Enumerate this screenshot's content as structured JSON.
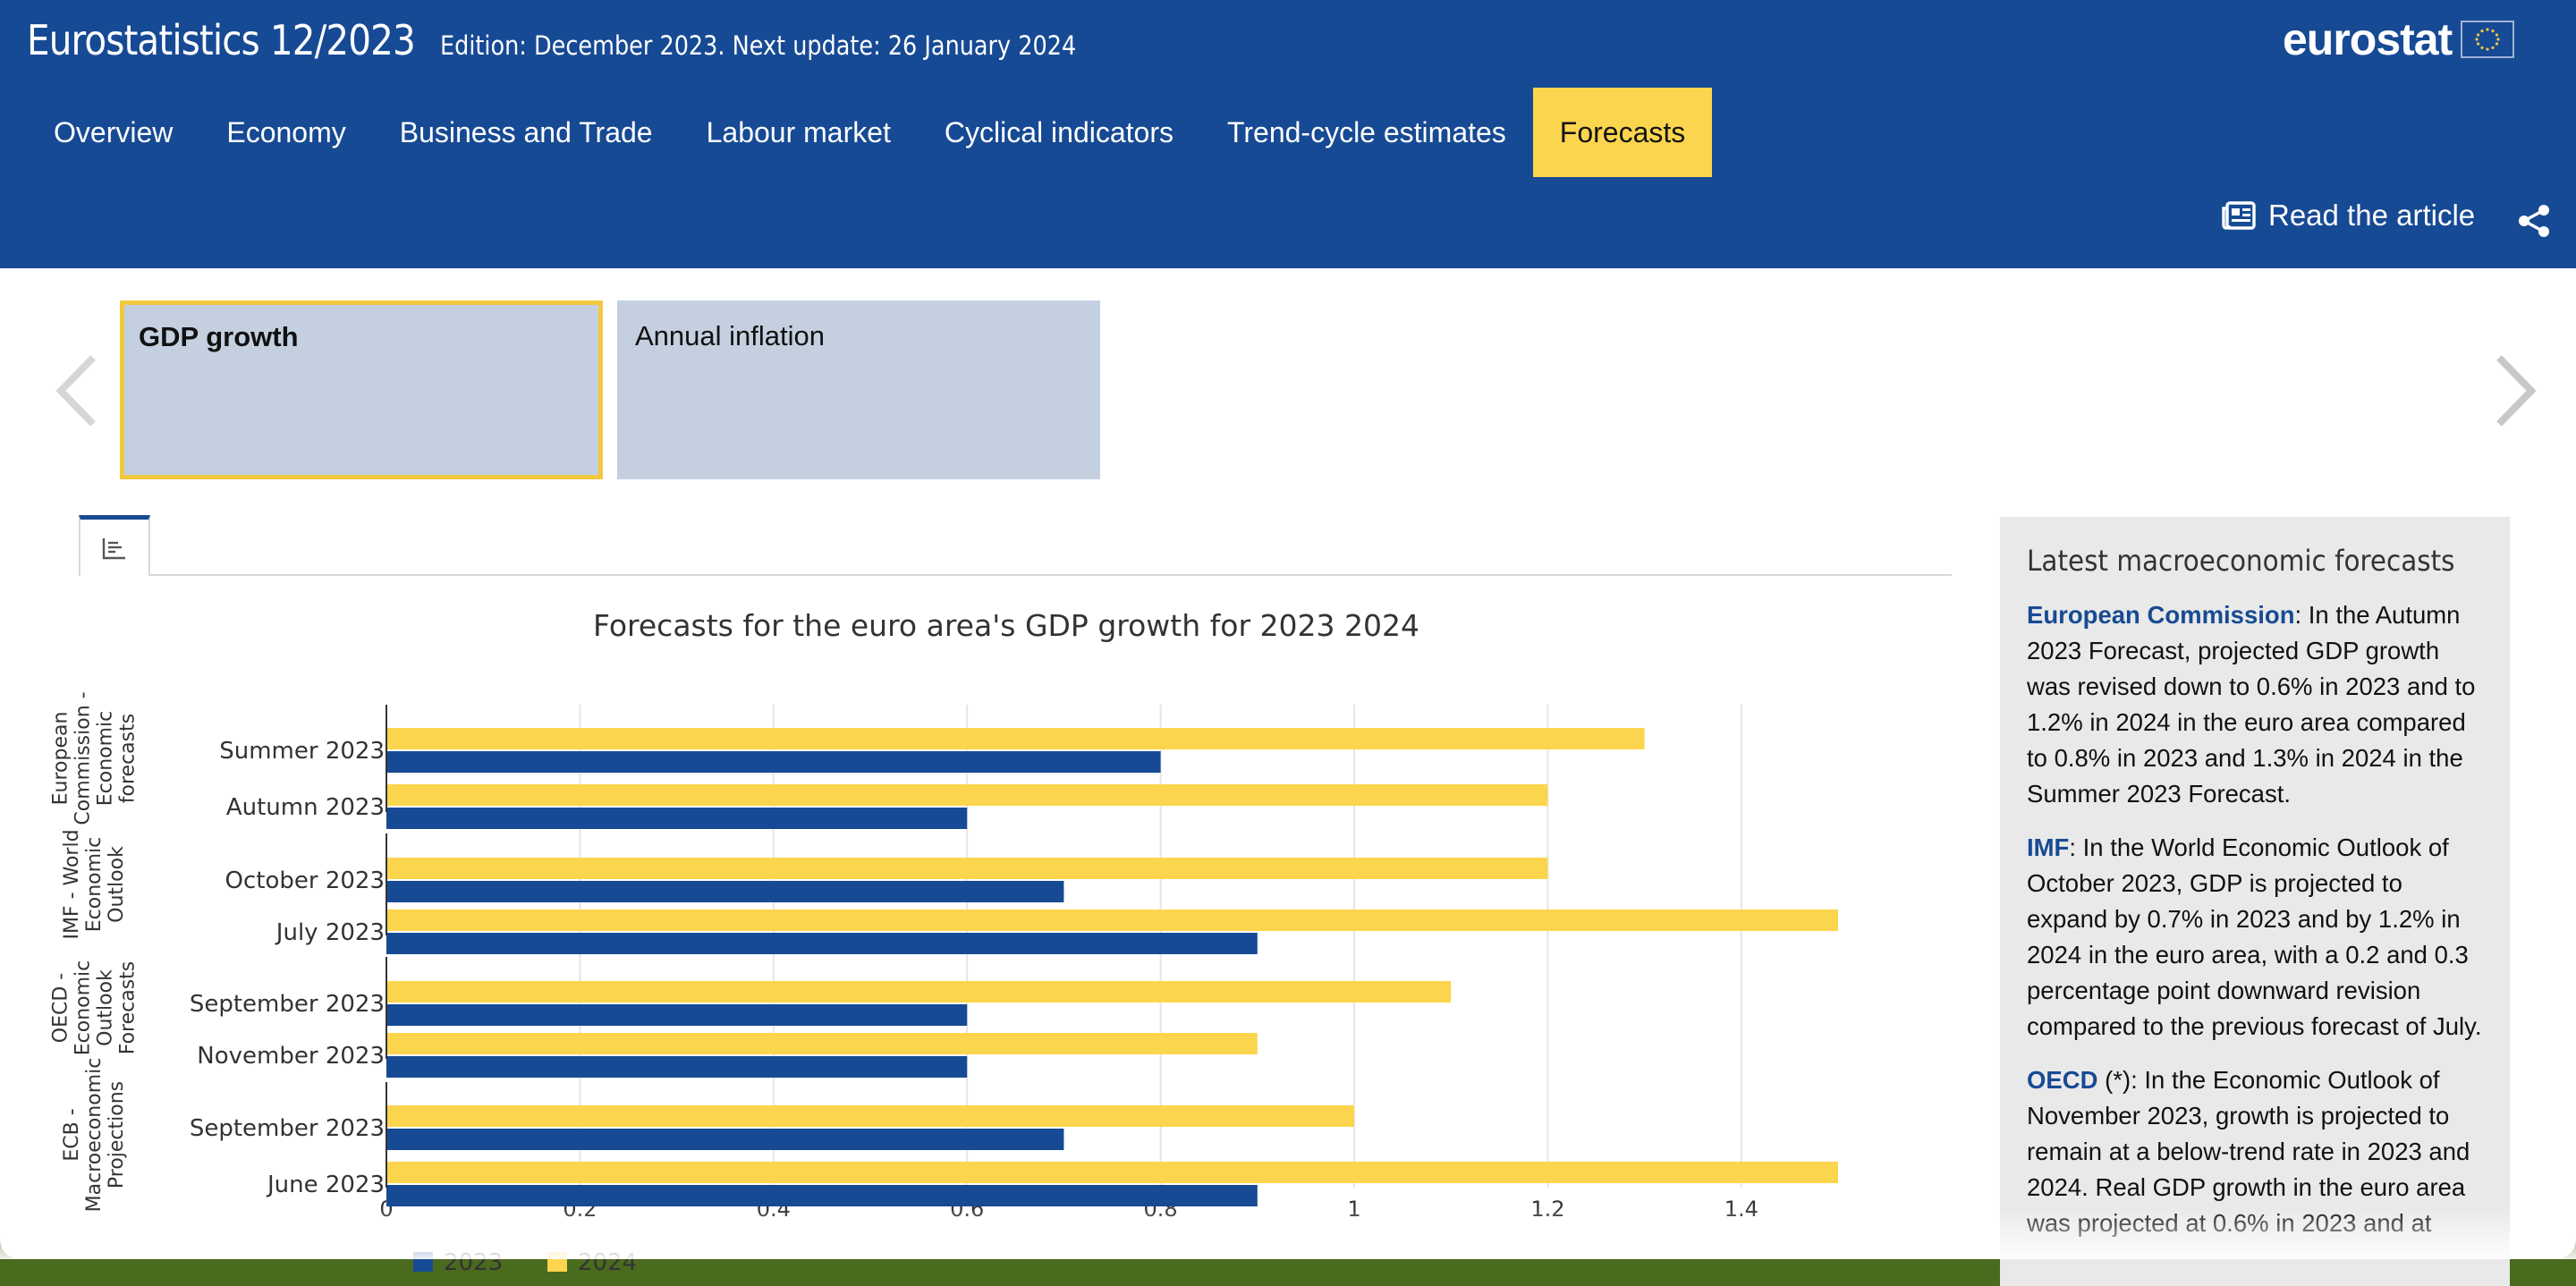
{
  "header": {
    "title": "Eurostatistics 12/2023",
    "edition": "Edition: December 2023. Next update: 26 January 2024",
    "logo_text": "eurostat"
  },
  "nav": {
    "tabs": [
      {
        "label": "Overview"
      },
      {
        "label": "Economy"
      },
      {
        "label": "Business and Trade"
      },
      {
        "label": "Labour market"
      },
      {
        "label": "Cyclical indicators"
      },
      {
        "label": "Trend-cycle estimates"
      },
      {
        "label": "Forecasts",
        "active": true
      }
    ],
    "read_article": "Read the article"
  },
  "carousel": {
    "cards": [
      {
        "label": "GDP growth",
        "selected": true
      },
      {
        "label": "Annual inflation",
        "selected": false
      }
    ]
  },
  "chart_data": {
    "type": "bar",
    "orientation": "horizontal",
    "title": "Forecasts for the euro area's GDP growth for 2023 2024",
    "groups": [
      {
        "label": "European Commission - Economic forecasts",
        "categories": [
          "Summer 2023",
          "Autumn 2023"
        ]
      },
      {
        "label": "IMF - World Economic Outlook",
        "categories": [
          "October 2023",
          "July 2023"
        ]
      },
      {
        "label": "OECD - Economic Outlook Forecasts",
        "categories": [
          "September 2023",
          "November 2023"
        ]
      },
      {
        "label": "ECB - Macroeconomic Projections",
        "categories": [
          "September 2023",
          "June 2023"
        ]
      }
    ],
    "categories": [
      "Summer 2023",
      "Autumn 2023",
      "October 2023",
      "July 2023",
      "September 2023",
      "November 2023",
      "September 2023",
      "June 2023"
    ],
    "series": [
      {
        "name": "2024",
        "color": "#fbd54d",
        "values": [
          1.3,
          1.2,
          1.2,
          1.5,
          1.1,
          0.9,
          1.0,
          1.5
        ]
      },
      {
        "name": "2023",
        "color": "#174a94",
        "values": [
          0.8,
          0.6,
          0.7,
          0.9,
          0.6,
          0.6,
          0.7,
          0.9
        ]
      }
    ],
    "xticks": [
      "0",
      "0.2",
      "0.4",
      "0.6",
      "0.8",
      "1",
      "1.2",
      "1.4"
    ],
    "xlim": [
      0,
      1.55
    ],
    "grid": true,
    "legend_position": "bottom-left"
  },
  "side_panel": {
    "title": "Latest macroeconomic forecasts",
    "items": [
      {
        "source": "European Commission",
        "text": ": In the Autumn 2023 Forecast, projected GDP growth was revised down to 0.6% in 2023 and to 1.2% in 2024 in the euro area compared to 0.8% in 2023 and 1.3% in 2024 in the Summer 2023 Forecast."
      },
      {
        "source": "IMF",
        "text": ": In the World Economic Outlook of October 2023, GDP is projected to expand by 0.7% in 2023 and by 1.2% in 2024 in the euro area, with a 0.2 and 0.3 percentage point downward revision compared to the previous forecast of July."
      },
      {
        "source": "OECD",
        "text": " (*): In the Economic Outlook of November 2023, growth is projected to remain at a below-trend rate in 2023 and 2024. Real GDP growth in the euro area was projected at 0.6% in 2023 and at"
      }
    ]
  }
}
